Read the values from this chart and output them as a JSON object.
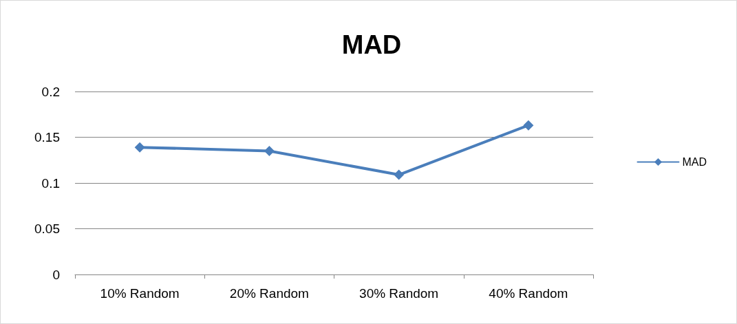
{
  "chart_data": {
    "type": "line",
    "title": "MAD",
    "categories": [
      "10% Random",
      "20% Random",
      "30% Random",
      "40% Random"
    ],
    "series": [
      {
        "name": "MAD",
        "color": "#4a7ebb",
        "values": [
          0.139,
          0.135,
          0.109,
          0.163
        ]
      }
    ],
    "ylim": [
      0,
      0.2
    ],
    "yticks": [
      0,
      0.05,
      0.1,
      0.15,
      0.2
    ],
    "grid": "y",
    "legend": "right",
    "marker": "diamond",
    "line_style": "solid"
  }
}
